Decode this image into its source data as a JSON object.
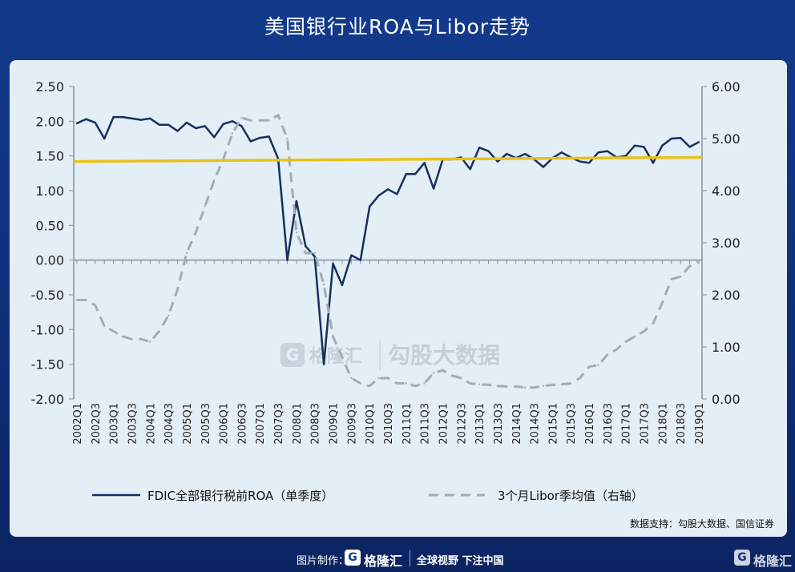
{
  "page": {
    "title": "美国银行业ROA与Libor走势",
    "source": "数据支持：勾股大数据、国信证券",
    "credit_label": "图片制作：",
    "logo_glyph": "G",
    "brand": "格隆汇",
    "slogan": "全球视野 下注中国",
    "watermark_text": "勾股大数据"
  },
  "colors": {
    "background": "#123a8c",
    "card": "#e4eef7",
    "roa_line": "#16305e",
    "libor_line": "#a3abb8",
    "horizontal_line": "#e8c21a",
    "axis": "#8a8f96"
  },
  "chart_data": {
    "type": "line",
    "categories": [
      "2002Q1",
      "2002Q2",
      "2002Q3",
      "2002Q4",
      "2003Q1",
      "2003Q2",
      "2003Q3",
      "2003Q4",
      "2004Q1",
      "2004Q2",
      "2004Q3",
      "2004Q4",
      "2005Q1",
      "2005Q2",
      "2005Q3",
      "2005Q4",
      "2006Q1",
      "2006Q2",
      "2006Q3",
      "2006Q4",
      "2007Q1",
      "2007Q2",
      "2007Q3",
      "2007Q4",
      "2008Q1",
      "2008Q2",
      "2008Q3",
      "2008Q4",
      "2009Q1",
      "2009Q2",
      "2009Q3",
      "2009Q4",
      "2010Q1",
      "2010Q2",
      "2010Q3",
      "2010Q4",
      "2011Q1",
      "2011Q2",
      "2011Q3",
      "2011Q4",
      "2012Q1",
      "2012Q2",
      "2012Q3",
      "2012Q4",
      "2013Q1",
      "2013Q2",
      "2013Q3",
      "2013Q4",
      "2014Q1",
      "2014Q2",
      "2014Q3",
      "2014Q4",
      "2015Q1",
      "2015Q2",
      "2015Q3",
      "2015Q4",
      "2016Q1",
      "2016Q2",
      "2016Q3",
      "2016Q4",
      "2017Q1",
      "2017Q2",
      "2017Q3",
      "2017Q4",
      "2018Q1",
      "2018Q2",
      "2018Q3",
      "2018Q4",
      "2019Q1"
    ],
    "tick_labels": [
      "2002Q1",
      "2002Q3",
      "2003Q1",
      "2003Q3",
      "2004Q1",
      "2004Q3",
      "2005Q1",
      "2005Q3",
      "2006Q1",
      "2006Q3",
      "2007Q1",
      "2007Q3",
      "2008Q1",
      "2008Q3",
      "2009Q1",
      "2009Q3",
      "2010Q1",
      "2010Q3",
      "2011Q1",
      "2011Q3",
      "2012Q1",
      "2012Q3",
      "2013Q1",
      "2013Q3",
      "2014Q1",
      "2014Q3",
      "2015Q1",
      "2015Q3",
      "2016Q1",
      "2016Q3",
      "2017Q1",
      "2017Q3",
      "2018Q1",
      "2018Q3",
      "2019Q1"
    ],
    "series": [
      {
        "name": "FDIC全部银行税前ROA（单季度）",
        "axis": "left",
        "style": "solid",
        "values": [
          1.97,
          2.03,
          1.98,
          1.75,
          2.06,
          2.06,
          2.04,
          2.02,
          2.04,
          1.95,
          1.95,
          1.86,
          1.98,
          1.9,
          1.93,
          1.77,
          1.96,
          2.0,
          1.93,
          1.71,
          1.76,
          1.78,
          1.46,
          0.0,
          0.85,
          0.2,
          0.05,
          -1.5,
          -0.05,
          -0.36,
          0.07,
          0.0,
          0.77,
          0.93,
          1.02,
          0.95,
          1.24,
          1.24,
          1.4,
          1.03,
          1.45,
          1.45,
          1.48,
          1.31,
          1.62,
          1.57,
          1.42,
          1.53,
          1.47,
          1.53,
          1.45,
          1.34,
          1.47,
          1.55,
          1.48,
          1.42,
          1.4,
          1.55,
          1.57,
          1.48,
          1.5,
          1.65,
          1.63,
          1.4,
          1.65,
          1.75,
          1.76,
          1.63,
          1.7
        ]
      },
      {
        "name": "3个月Libor季均值（右轴）",
        "axis": "right",
        "style": "dashed",
        "values": [
          1.9,
          1.9,
          1.8,
          1.4,
          1.3,
          1.2,
          1.15,
          1.15,
          1.1,
          1.3,
          1.6,
          2.1,
          2.8,
          3.2,
          3.7,
          4.2,
          4.6,
          5.1,
          5.4,
          5.35,
          5.35,
          5.35,
          5.45,
          5.0,
          3.2,
          2.8,
          2.8,
          2.2,
          1.2,
          0.8,
          0.4,
          0.3,
          0.25,
          0.4,
          0.4,
          0.3,
          0.3,
          0.25,
          0.3,
          0.5,
          0.55,
          0.45,
          0.4,
          0.3,
          0.28,
          0.27,
          0.25,
          0.24,
          0.24,
          0.22,
          0.22,
          0.25,
          0.27,
          0.28,
          0.3,
          0.4,
          0.62,
          0.65,
          0.85,
          0.95,
          1.1,
          1.2,
          1.3,
          1.45,
          1.85,
          2.3,
          2.35,
          2.55,
          2.65
        ]
      }
    ],
    "reference_line": {
      "axis": "left",
      "values": [
        1.42,
        1.48
      ]
    },
    "y_left": {
      "ylim": [
        -2.0,
        2.5
      ],
      "ticks": [
        "-2.00",
        "-1.50",
        "-1.00",
        "-0.50",
        "0.00",
        "0.50",
        "1.00",
        "1.50",
        "2.00",
        "2.50"
      ]
    },
    "y_right": {
      "ylim": [
        0.0,
        6.0
      ],
      "ticks": [
        "0.00",
        "1.00",
        "2.00",
        "3.00",
        "4.00",
        "5.00",
        "6.00"
      ]
    },
    "legend_position": "bottom",
    "grid": false
  }
}
